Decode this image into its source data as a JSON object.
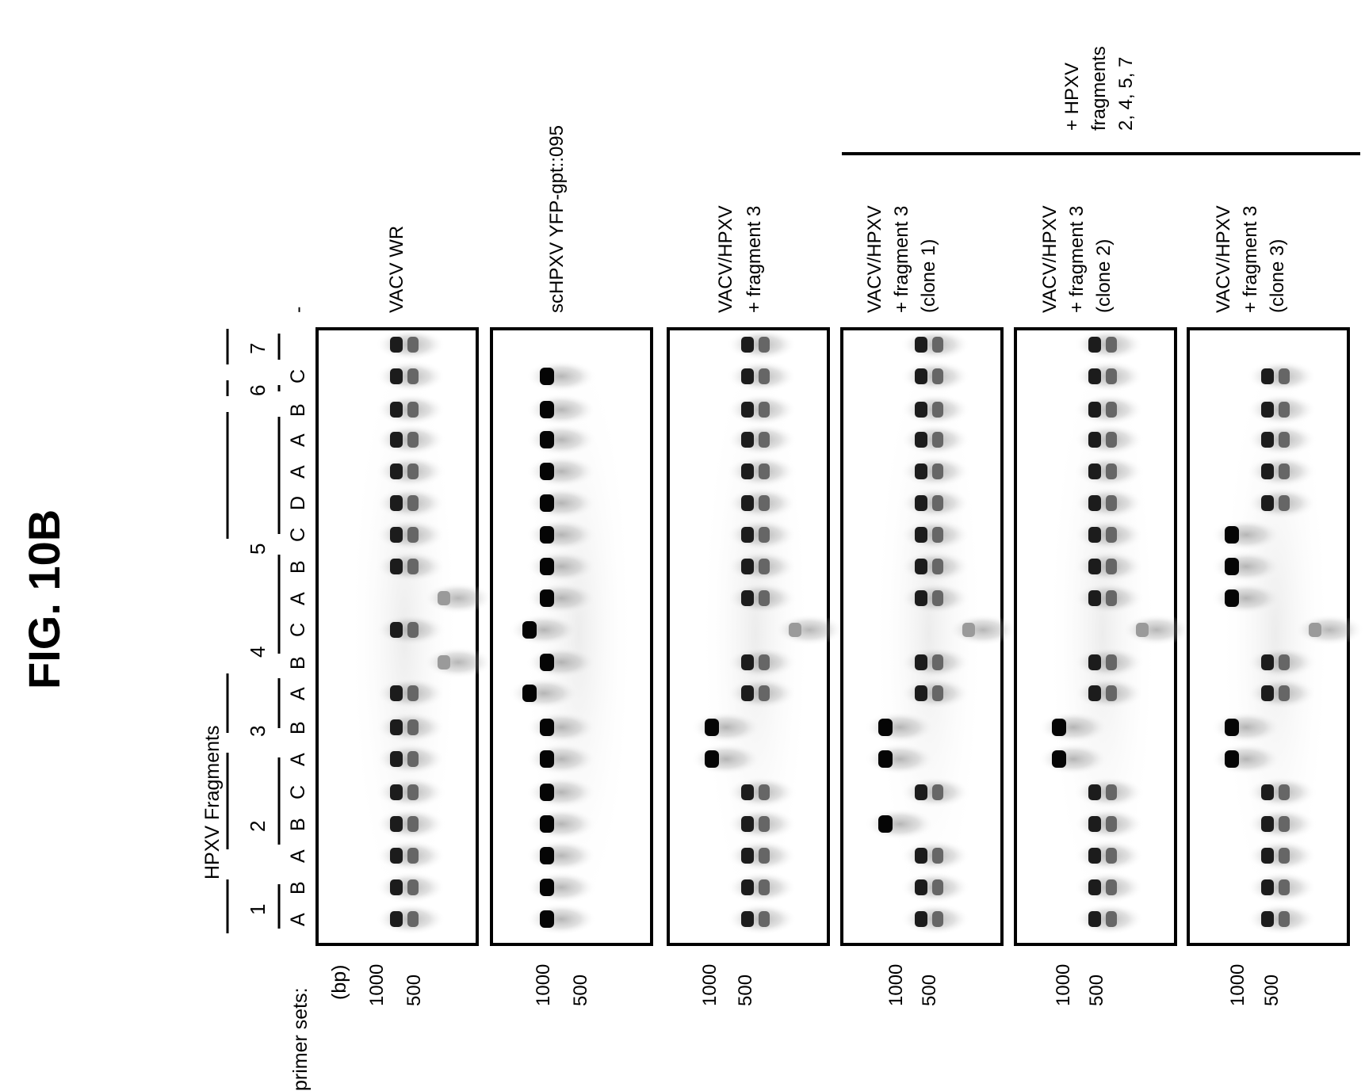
{
  "figure": {
    "title": "FIG. 10B",
    "fragments_header": "HPXV Fragments",
    "primer_sets_label": "primer sets:",
    "bp_label": "(bp)",
    "marker_labels": [
      "1000",
      "500"
    ],
    "fragments": [
      {
        "number": "1",
        "primers": [
          "A",
          "B"
        ]
      },
      {
        "number": "2",
        "primers": [
          "A",
          "B",
          "C"
        ]
      },
      {
        "number": "3",
        "primers": [
          "A",
          "B"
        ]
      },
      {
        "number": "4",
        "primers": [
          "A",
          "B",
          "C"
        ]
      },
      {
        "number": "5",
        "primers": [
          "A",
          "B",
          "C",
          "D"
        ]
      },
      {
        "number": "6",
        "primers": [
          "A"
        ]
      },
      {
        "number": "7",
        "primers": [
          "A",
          "B",
          "C"
        ]
      }
    ],
    "negative_control_label": "-",
    "group_label": [
      "+ HPXV",
      "fragments",
      "2, 4, 5, 7"
    ],
    "panels": [
      {
        "name": "VACV WR",
        "label": [
          "VACV WR"
        ],
        "bands": [
          "s",
          "s",
          "s",
          "s",
          "s",
          "s",
          "s",
          "s",
          "w",
          "s",
          "w",
          "s",
          "s",
          "s",
          "s",
          "s",
          "s",
          "s",
          "s"
        ]
      },
      {
        "name": "scHPXV YFP-gpt::095",
        "label": [
          "scHPXV YFP-gpt::095"
        ],
        "bands": [
          "d",
          "d",
          "d",
          "d",
          "d",
          "d",
          "d",
          "h",
          "d",
          "h",
          "d",
          "d",
          "d",
          "d",
          "d",
          "d",
          "d",
          "d",
          "n"
        ]
      },
      {
        "name": "VACV/HPXV + fragment 3",
        "label": [
          "VACV/HPXV",
          "+ fragment 3"
        ],
        "bands": [
          "s",
          "s",
          "s",
          "s",
          "s",
          "L",
          "L",
          "s",
          "s",
          "w",
          "s",
          "s",
          "s",
          "s",
          "s",
          "s",
          "s",
          "s",
          "s"
        ]
      },
      {
        "name": "VACV/HPXV + fragment 3 (clone 1)",
        "label": [
          "VACV/HPXV",
          "+ fragment 3",
          "(clone 1)"
        ],
        "bands": [
          "s",
          "s",
          "s",
          "L",
          "s",
          "L",
          "L",
          "s",
          "s",
          "w",
          "s",
          "s",
          "s",
          "s",
          "s",
          "s",
          "s",
          "s",
          "s"
        ]
      },
      {
        "name": "VACV/HPXV + fragment 3 (clone 2)",
        "label": [
          "VACV/HPXV",
          "+ fragment 3",
          "(clone 2)"
        ],
        "bands": [
          "s",
          "s",
          "s",
          "s",
          "s",
          "L",
          "L",
          "s",
          "s",
          "w",
          "s",
          "s",
          "s",
          "s",
          "s",
          "s",
          "s",
          "s",
          "s"
        ]
      },
      {
        "name": "VACV/HPXV + fragment 3 (clone 3)",
        "label": [
          "VACV/HPXV",
          "+ fragment 3",
          "(clone 3)"
        ],
        "bands": [
          "s",
          "s",
          "s",
          "s",
          "s",
          "L",
          "L",
          "s",
          "s",
          "w",
          "L",
          "L",
          "L",
          "s",
          "s",
          "s",
          "s",
          "s",
          "n"
        ]
      }
    ]
  }
}
